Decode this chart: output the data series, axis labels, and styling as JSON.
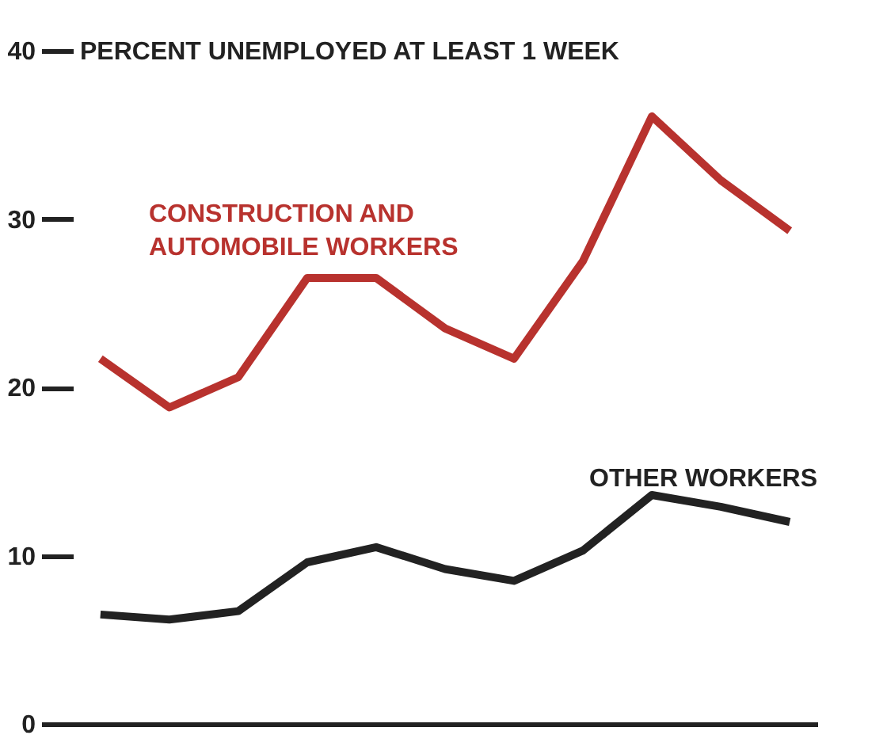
{
  "chart_data": {
    "type": "line",
    "ylabel": "PERCENT UNEMPLOYED AT LEAST 1 WEEK",
    "categories": [
      null,
      null,
      null,
      null,
      null,
      null,
      null,
      null,
      null,
      null,
      null
    ],
    "series": [
      {
        "name": "CONSTRUCTION AND AUTOMOBILE WORKERS",
        "color": "#b8322e",
        "values": [
          21.7,
          18.8,
          20.6,
          26.5,
          26.5,
          23.5,
          21.7,
          27.5,
          36.1,
          32.3,
          29.3
        ]
      },
      {
        "name": "OTHER WORKERS",
        "color": "#222222",
        "values": [
          6.5,
          6.2,
          6.7,
          9.6,
          10.5,
          9.2,
          8.5,
          10.3,
          13.6,
          12.9,
          12.0
        ]
      }
    ],
    "ylim": [
      0,
      40
    ],
    "yticks": [
      0,
      10,
      20,
      30,
      40
    ],
    "grid": false,
    "legend": false,
    "tick_labels": "y",
    "marker": "none",
    "line_style": "solid"
  }
}
